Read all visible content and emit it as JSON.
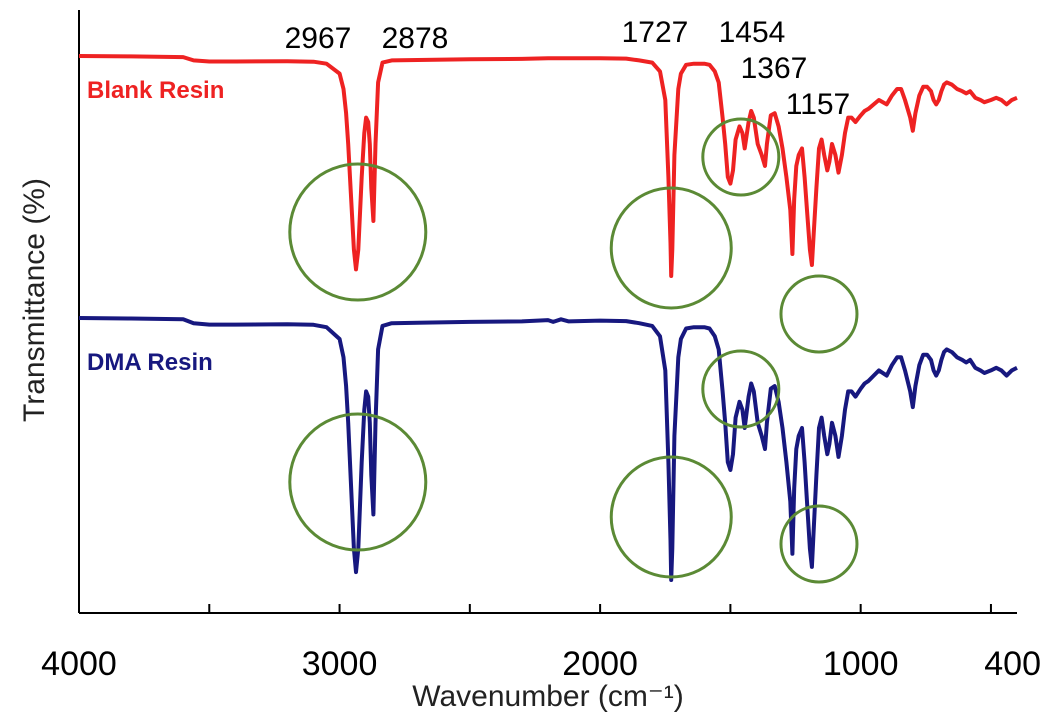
{
  "chart_data": {
    "type": "line",
    "title": "",
    "xlabel": "Wavenumber (cm⁻¹)",
    "ylabel": "Transmittance (%)",
    "xlim": [
      4000,
      400
    ],
    "x_reversed": true,
    "x_ticks": [
      4000,
      3000,
      2000,
      1000,
      400
    ],
    "y_ticks_shown": false,
    "grid": false,
    "colors": {
      "blank": "#ee2222",
      "dma": "#17187f",
      "circle": "#5b8a35"
    },
    "series": [
      {
        "name": "Blank Resin",
        "label_position": "left",
        "color": "#ee2222",
        "points": [
          [
            4000,
            100
          ],
          [
            3800,
            99.8
          ],
          [
            3600,
            99.5
          ],
          [
            3560,
            98
          ],
          [
            3500,
            97.5
          ],
          [
            3400,
            97.5
          ],
          [
            3200,
            97.6
          ],
          [
            3100,
            97.4
          ],
          [
            3050,
            96.5
          ],
          [
            3000,
            92
          ],
          [
            2985,
            85
          ],
          [
            2975,
            74
          ],
          [
            2967,
            60
          ],
          [
            2957,
            38
          ],
          [
            2945,
            12
          ],
          [
            2937,
            3
          ],
          [
            2928,
            12
          ],
          [
            2915,
            45
          ],
          [
            2905,
            65
          ],
          [
            2898,
            72
          ],
          [
            2890,
            70
          ],
          [
            2884,
            60
          ],
          [
            2878,
            40
          ],
          [
            2870,
            25
          ],
          [
            2862,
            60
          ],
          [
            2852,
            88
          ],
          [
            2835,
            97
          ],
          [
            2800,
            98
          ],
          [
            2700,
            98.2
          ],
          [
            2500,
            98.5
          ],
          [
            2300,
            98.7
          ],
          [
            2200,
            99
          ],
          [
            2000,
            99
          ],
          [
            1900,
            98.8
          ],
          [
            1850,
            98
          ],
          [
            1800,
            97
          ],
          [
            1770,
            93
          ],
          [
            1750,
            80
          ],
          [
            1738,
            45
          ],
          [
            1730,
            15
          ],
          [
            1727,
            0
          ],
          [
            1723,
            12
          ],
          [
            1715,
            55
          ],
          [
            1700,
            85
          ],
          [
            1690,
            92
          ],
          [
            1670,
            96
          ],
          [
            1640,
            96.5
          ],
          [
            1600,
            96.5
          ],
          [
            1580,
            96
          ],
          [
            1560,
            93
          ],
          [
            1545,
            88
          ],
          [
            1530,
            72
          ],
          [
            1520,
            60
          ],
          [
            1510,
            45
          ],
          [
            1500,
            42
          ],
          [
            1490,
            48
          ],
          [
            1480,
            62
          ],
          [
            1465,
            68
          ],
          [
            1454,
            65
          ],
          [
            1445,
            58
          ],
          [
            1430,
            70
          ],
          [
            1420,
            75
          ],
          [
            1410,
            72
          ],
          [
            1395,
            60
          ],
          [
            1380,
            55
          ],
          [
            1367,
            50
          ],
          [
            1360,
            60
          ],
          [
            1345,
            73
          ],
          [
            1330,
            74
          ],
          [
            1315,
            68
          ],
          [
            1300,
            58
          ],
          [
            1285,
            45
          ],
          [
            1270,
            30
          ],
          [
            1262,
            10
          ],
          [
            1255,
            35
          ],
          [
            1247,
            50
          ],
          [
            1238,
            55
          ],
          [
            1225,
            58
          ],
          [
            1215,
            45
          ],
          [
            1205,
            28
          ],
          [
            1195,
            12
          ],
          [
            1187,
            5
          ],
          [
            1180,
            20
          ],
          [
            1170,
            40
          ],
          [
            1160,
            58
          ],
          [
            1150,
            62
          ],
          [
            1140,
            55
          ],
          [
            1128,
            48
          ],
          [
            1120,
            52
          ],
          [
            1110,
            60
          ],
          [
            1097,
            55
          ],
          [
            1085,
            47
          ],
          [
            1072,
            55
          ],
          [
            1060,
            65
          ],
          [
            1048,
            72
          ],
          [
            1035,
            72
          ],
          [
            1020,
            70
          ],
          [
            1000,
            73
          ],
          [
            985,
            75
          ],
          [
            970,
            76
          ],
          [
            950,
            78
          ],
          [
            930,
            80
          ],
          [
            900,
            78
          ],
          [
            880,
            82
          ],
          [
            860,
            85
          ],
          [
            845,
            85
          ],
          [
            830,
            80
          ],
          [
            810,
            72
          ],
          [
            800,
            66
          ],
          [
            790,
            74
          ],
          [
            775,
            82
          ],
          [
            760,
            86
          ],
          [
            745,
            86
          ],
          [
            730,
            84
          ],
          [
            720,
            80
          ],
          [
            710,
            78
          ],
          [
            700,
            80
          ],
          [
            690,
            84
          ],
          [
            680,
            87
          ],
          [
            670,
            88
          ],
          [
            650,
            87
          ],
          [
            630,
            85
          ],
          [
            610,
            84
          ],
          [
            595,
            83
          ],
          [
            580,
            84
          ],
          [
            560,
            81
          ],
          [
            540,
            80
          ],
          [
            525,
            79
          ],
          [
            500,
            80
          ],
          [
            480,
            81
          ],
          [
            460,
            80
          ],
          [
            440,
            78
          ],
          [
            420,
            80
          ],
          [
            400,
            81
          ]
        ]
      },
      {
        "name": "DMA Resin",
        "label_position": "left",
        "color": "#17187f",
        "points": [
          [
            4000,
            100
          ],
          [
            3800,
            99.8
          ],
          [
            3600,
            99.5
          ],
          [
            3560,
            98
          ],
          [
            3500,
            97.5
          ],
          [
            3400,
            97.5
          ],
          [
            3200,
            97.6
          ],
          [
            3100,
            97.4
          ],
          [
            3050,
            96.5
          ],
          [
            3000,
            92
          ],
          [
            2985,
            85
          ],
          [
            2975,
            74
          ],
          [
            2967,
            60
          ],
          [
            2957,
            38
          ],
          [
            2945,
            12
          ],
          [
            2937,
            3
          ],
          [
            2928,
            12
          ],
          [
            2915,
            45
          ],
          [
            2905,
            65
          ],
          [
            2898,
            72
          ],
          [
            2890,
            70
          ],
          [
            2884,
            60
          ],
          [
            2878,
            40
          ],
          [
            2870,
            25
          ],
          [
            2862,
            60
          ],
          [
            2852,
            88
          ],
          [
            2835,
            97
          ],
          [
            2800,
            98
          ],
          [
            2700,
            98.2
          ],
          [
            2500,
            98.5
          ],
          [
            2300,
            98.7
          ],
          [
            2200,
            99.2
          ],
          [
            2180,
            98.5
          ],
          [
            2150,
            99.5
          ],
          [
            2120,
            98.7
          ],
          [
            2000,
            99
          ],
          [
            1900,
            98.8
          ],
          [
            1850,
            98
          ],
          [
            1800,
            97
          ],
          [
            1770,
            93
          ],
          [
            1750,
            80
          ],
          [
            1738,
            45
          ],
          [
            1730,
            15
          ],
          [
            1727,
            0
          ],
          [
            1723,
            12
          ],
          [
            1715,
            55
          ],
          [
            1700,
            85
          ],
          [
            1690,
            92
          ],
          [
            1670,
            96
          ],
          [
            1640,
            96.5
          ],
          [
            1600,
            96.5
          ],
          [
            1580,
            96
          ],
          [
            1560,
            93
          ],
          [
            1545,
            88
          ],
          [
            1530,
            72
          ],
          [
            1520,
            60
          ],
          [
            1510,
            45
          ],
          [
            1500,
            42
          ],
          [
            1490,
            48
          ],
          [
            1480,
            62
          ],
          [
            1465,
            68
          ],
          [
            1454,
            65
          ],
          [
            1445,
            58
          ],
          [
            1430,
            70
          ],
          [
            1420,
            75
          ],
          [
            1410,
            72
          ],
          [
            1395,
            60
          ],
          [
            1380,
            55
          ],
          [
            1367,
            50
          ],
          [
            1360,
            60
          ],
          [
            1345,
            73
          ],
          [
            1330,
            74
          ],
          [
            1315,
            68
          ],
          [
            1300,
            58
          ],
          [
            1285,
            45
          ],
          [
            1270,
            30
          ],
          [
            1262,
            10
          ],
          [
            1255,
            35
          ],
          [
            1247,
            50
          ],
          [
            1238,
            55
          ],
          [
            1225,
            58
          ],
          [
            1215,
            45
          ],
          [
            1205,
            28
          ],
          [
            1195,
            12
          ],
          [
            1187,
            5
          ],
          [
            1180,
            20
          ],
          [
            1170,
            40
          ],
          [
            1160,
            58
          ],
          [
            1150,
            62
          ],
          [
            1140,
            55
          ],
          [
            1128,
            48
          ],
          [
            1120,
            52
          ],
          [
            1110,
            60
          ],
          [
            1097,
            55
          ],
          [
            1085,
            47
          ],
          [
            1072,
            55
          ],
          [
            1060,
            65
          ],
          [
            1048,
            72
          ],
          [
            1035,
            72
          ],
          [
            1020,
            70
          ],
          [
            1000,
            73
          ],
          [
            985,
            75
          ],
          [
            970,
            76
          ],
          [
            950,
            78
          ],
          [
            930,
            80
          ],
          [
            900,
            78
          ],
          [
            880,
            82
          ],
          [
            860,
            85
          ],
          [
            845,
            85
          ],
          [
            830,
            80
          ],
          [
            810,
            72
          ],
          [
            800,
            66
          ],
          [
            790,
            74
          ],
          [
            775,
            82
          ],
          [
            760,
            86
          ],
          [
            745,
            86
          ],
          [
            730,
            84
          ],
          [
            720,
            80
          ],
          [
            710,
            78
          ],
          [
            700,
            80
          ],
          [
            690,
            84
          ],
          [
            680,
            87
          ],
          [
            670,
            88
          ],
          [
            650,
            87
          ],
          [
            630,
            85
          ],
          [
            610,
            84
          ],
          [
            595,
            83
          ],
          [
            580,
            84
          ],
          [
            560,
            81
          ],
          [
            540,
            80
          ],
          [
            525,
            79
          ],
          [
            500,
            80
          ],
          [
            480,
            81
          ],
          [
            460,
            80
          ],
          [
            440,
            78
          ],
          [
            420,
            80
          ],
          [
            400,
            81
          ]
        ]
      }
    ],
    "annotations": [
      {
        "text": "2967",
        "x": 2967
      },
      {
        "text": "2878",
        "x": 2878
      },
      {
        "text": "1727",
        "x": 1727
      },
      {
        "text": "1454",
        "x": 1454
      },
      {
        "text": "1367",
        "x": 1367
      },
      {
        "text": "1157",
        "x": 1157
      }
    ],
    "highlighted_peaks_cm": [
      2930,
      1727,
      1460,
      1160
    ]
  }
}
